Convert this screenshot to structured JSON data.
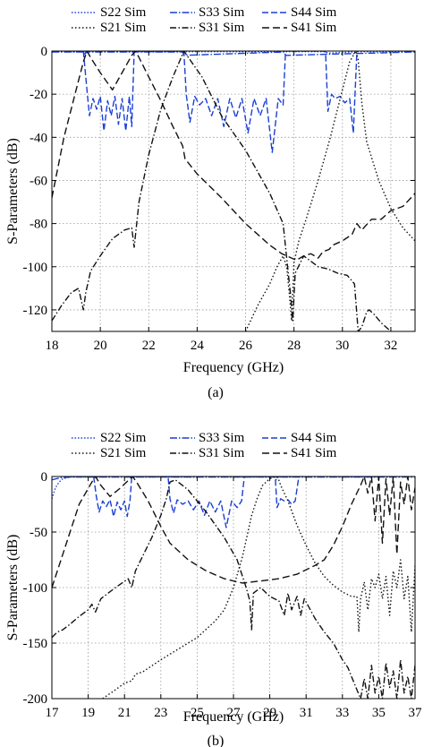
{
  "chart_data": [
    {
      "type": "line",
      "caption": "(a)",
      "xlabel": "Frequency (GHz)",
      "ylabel": "S-Parameters (dB)",
      "xlim": [
        18,
        33
      ],
      "ylim": [
        -130,
        0
      ],
      "xticks": [
        18,
        20,
        22,
        24,
        26,
        28,
        30,
        32
      ],
      "yticks": [
        0,
        -20,
        -40,
        -60,
        -80,
        -100,
        -120
      ],
      "grid": true,
      "legend_position": "top",
      "series": [
        {
          "name": "S22 Sim",
          "color": "#1a3fd6",
          "dash": "1.5 2",
          "x": [
            18,
            19.3,
            19.4,
            19.5,
            20.5,
            21.4,
            21.5,
            23.4,
            23.5,
            27.6,
            27.7,
            29.3,
            29.4,
            30.6,
            30.7,
            33
          ],
          "y": [
            -0.3,
            -0.3,
            -1,
            -0.3,
            -0.3,
            -0.3,
            -0.3,
            -0.3,
            -0.3,
            -0.3,
            -0.3,
            -0.3,
            -1,
            -0.3,
            -0.3,
            -0.3
          ]
        },
        {
          "name": "S33 Sim",
          "color": "#1a3fd6",
          "dash": "8 2 1.5 2",
          "x": [
            18,
            19.3,
            19.35,
            19.4,
            20,
            21.4,
            23.4,
            23.45,
            27.6,
            27.65,
            33
          ],
          "y": [
            -0.4,
            -0.4,
            -2,
            -0.4,
            -0.4,
            -0.4,
            -0.4,
            -2,
            -0.4,
            -2,
            -0.4
          ]
        },
        {
          "name": "S44 Sim",
          "color": "#1a3fd6",
          "dash": "7 3",
          "x": [
            19.3,
            19.45,
            19.55,
            19.7,
            19.85,
            20.0,
            20.15,
            20.3,
            20.45,
            20.6,
            20.75,
            20.9,
            21.05,
            21.2,
            21.3,
            21.4,
            23.45,
            23.55,
            23.7,
            23.9,
            24.1,
            24.35,
            24.6,
            24.85,
            25.1,
            25.35,
            25.6,
            25.85,
            26.1,
            26.35,
            26.6,
            26.85,
            27.1,
            27.35,
            27.55,
            27.65,
            29.3,
            29.4,
            29.55,
            29.7,
            29.9,
            30.1,
            30.3,
            30.45,
            30.6
          ],
          "y": [
            0,
            -18,
            -30,
            -22,
            -27,
            -21,
            -37,
            -23,
            -30,
            -21,
            -34,
            -22,
            -37,
            -21,
            -35,
            0,
            0,
            -20,
            -33,
            -21,
            -25,
            -22,
            -30,
            -22,
            -35,
            -22,
            -31,
            -22,
            -38,
            -22,
            -30,
            -22,
            -47,
            -22,
            -25,
            0,
            0,
            -28,
            -20,
            -22,
            -21,
            -24,
            -22,
            -38,
            0
          ]
        },
        {
          "name": "S21 Sim",
          "color": "#111111",
          "dash": "1.5 2.5",
          "x": [
            26,
            26.5,
            27,
            27.3,
            27.55,
            27.7,
            27.8,
            27.9,
            28.0,
            28.2,
            28.5,
            29,
            29.5,
            30,
            30.3,
            30.55,
            30.65,
            30.8,
            31,
            31.5,
            32,
            32.5,
            33
          ],
          "y": [
            -130,
            -118,
            -108,
            -100,
            -95,
            -100,
            -112,
            -125,
            -98,
            -88,
            -78,
            -60,
            -40,
            -18,
            -5,
            0,
            -4,
            -24,
            -42,
            -60,
            -73,
            -82,
            -88
          ]
        },
        {
          "name": "S31 Sim",
          "color": "#111111",
          "dash": "7 2.5 1.5 2.5",
          "x": [
            18,
            18.4,
            18.8,
            19.1,
            19.3,
            19.4,
            19.6,
            20,
            20.5,
            21,
            21.3,
            21.4,
            21.6,
            22,
            22.5,
            23,
            23.3,
            23.45,
            23.7,
            24.2,
            25,
            26,
            27,
            27.55,
            27.7,
            27.85,
            27.95,
            28.05,
            28.4,
            29,
            29.4,
            29.8,
            30.2,
            30.5,
            30.65,
            30.8,
            31.0,
            31.1,
            31.3,
            31.6,
            32.0
          ],
          "y": [
            -125,
            -118,
            -112,
            -110,
            -120,
            -112,
            -102,
            -95,
            -87,
            -83,
            -82,
            -91,
            -70,
            -48,
            -27,
            -12,
            -4,
            0,
            -4,
            -12,
            -30,
            -46,
            -66,
            -80,
            -96,
            -112,
            -125,
            -103,
            -95,
            -100,
            -101,
            -103,
            -104,
            -108,
            -130,
            -128,
            -121,
            -120,
            -122,
            -126,
            -130
          ]
        },
        {
          "name": "S41 Sim",
          "color": "#111111",
          "dash": "8 4",
          "x": [
            18,
            18.5,
            19,
            19.3,
            19.45,
            19.6,
            20,
            20.5,
            21,
            21.3,
            21.45,
            21.6,
            22,
            22.5,
            23,
            23.4,
            23.5,
            24,
            25,
            26,
            27,
            27.5,
            27.7,
            27.9,
            28.1,
            28.4,
            28.7,
            29,
            29.2,
            29.45,
            29.6,
            29.8,
            30,
            30.4,
            30.6,
            30.8,
            31.2,
            31.6,
            32,
            32.5,
            33
          ],
          "y": [
            -68,
            -40,
            -18,
            -5,
            0,
            -3,
            -10,
            -18,
            -8,
            -2,
            0,
            -3,
            -12,
            -23,
            -35,
            -44,
            -50,
            -57,
            -68,
            -80,
            -90,
            -94,
            -95,
            -96,
            -97,
            -95,
            -94,
            -96,
            -93,
            -92,
            -90,
            -89,
            -88,
            -85,
            -80,
            -83,
            -78,
            -78,
            -74,
            -72,
            -66
          ]
        }
      ]
    },
    {
      "type": "line",
      "caption": "(b)",
      "xlabel": "Frequency (GHz)",
      "ylabel": "S-Parameters (dB)",
      "xlim": [
        17,
        37
      ],
      "ylim": [
        -200,
        0
      ],
      "xticks": [
        17,
        19,
        21,
        23,
        25,
        27,
        29,
        31,
        33,
        35,
        37
      ],
      "yticks": [
        0,
        -50,
        -100,
        -150,
        -200
      ],
      "grid": true,
      "legend_position": "top",
      "series": [
        {
          "name": "S22 Sim",
          "color": "#1a3fd6",
          "dash": "1.5 2",
          "x": [
            17,
            17.2,
            17.4,
            17.6,
            18,
            19.3,
            21.4,
            23.4,
            27.6,
            29.3,
            29.35,
            29.4,
            30.6,
            37
          ],
          "y": [
            -20,
            -10,
            -5,
            -2,
            -0.5,
            -0.5,
            -0.5,
            -0.5,
            -0.5,
            -0.5,
            -3,
            -0.5,
            -0.5,
            -0.5
          ]
        },
        {
          "name": "S33 Sim",
          "color": "#1a3fd6",
          "dash": "8 2 1.5 2",
          "x": [
            17,
            17.5,
            18,
            19.3,
            21.4,
            23.4,
            27.6,
            37
          ],
          "y": [
            -3,
            -1,
            -0.5,
            -0.5,
            -0.5,
            -0.5,
            -0.5,
            -0.5
          ]
        },
        {
          "name": "S44 Sim",
          "color": "#1a3fd6",
          "dash": "7 3",
          "x": [
            19.3,
            19.45,
            19.6,
            19.8,
            20.0,
            20.2,
            20.4,
            20.6,
            20.8,
            21.0,
            21.15,
            21.3,
            21.4,
            23.4,
            23.5,
            23.7,
            23.9,
            24.2,
            24.5,
            24.8,
            25.1,
            25.4,
            25.7,
            26.0,
            26.3,
            26.6,
            26.9,
            27.2,
            27.45,
            27.6,
            29.3,
            29.4,
            29.6,
            29.8,
            30.0,
            30.2,
            30.4,
            30.6
          ],
          "y": [
            0,
            -18,
            -32,
            -22,
            -27,
            -21,
            -36,
            -23,
            -30,
            -22,
            -36,
            -22,
            0,
            0,
            -20,
            -33,
            -21,
            -25,
            -22,
            -30,
            -22,
            -35,
            -22,
            -32,
            -22,
            -46,
            -22,
            -28,
            -22,
            0,
            0,
            -28,
            -20,
            -22,
            -21,
            -25,
            -22,
            0
          ]
        },
        {
          "name": "S21 Sim",
          "color": "#111111",
          "dash": "1.5 2.5",
          "x": [
            19.8,
            20.5,
            21,
            21.4,
            21.6,
            22,
            23,
            24,
            25,
            26,
            26.5,
            27,
            27.5,
            27.8,
            28.0,
            28.3,
            28.6,
            29,
            29.3,
            29.45,
            29.6,
            30,
            30.5,
            31,
            31.5,
            32,
            32.5,
            33,
            33.5,
            33.8,
            33.9,
            34.0,
            34.2,
            34.4,
            34.6,
            34.8,
            35.0,
            35.2,
            35.4,
            35.6,
            35.8,
            36.0,
            36.2,
            36.4,
            36.6,
            36.8,
            37
          ],
          "y": [
            -200,
            -192,
            -186,
            -184,
            -178,
            -176,
            -165,
            -155,
            -145,
            -130,
            -120,
            -100,
            -72,
            -50,
            -35,
            -20,
            -8,
            -2,
            0,
            -1,
            -8,
            -22,
            -44,
            -62,
            -78,
            -90,
            -98,
            -104,
            -108,
            -108,
            -140,
            -110,
            -95,
            -120,
            -92,
            -100,
            -88,
            -110,
            -90,
            -125,
            -85,
            -100,
            -75,
            -110,
            -90,
            -140,
            -80
          ]
        },
        {
          "name": "S31 Sim",
          "color": "#111111",
          "dash": "7 2.5 1.5 2.5",
          "x": [
            17,
            17.3,
            17.6,
            18,
            18.5,
            19,
            19.2,
            19.4,
            19.7,
            20.5,
            21.2,
            21.4,
            21.6,
            22.5,
            23,
            23.3,
            23.5,
            23.8,
            24.5,
            25.5,
            26.5,
            27.2,
            27.5,
            27.7,
            27.9,
            28.0,
            28.1,
            28.5,
            29,
            29.5,
            29.8,
            30.0,
            30.2,
            30.5,
            30.7,
            30.9,
            31.5,
            32,
            32.5,
            33,
            33.3,
            33.5,
            33.8,
            34.0,
            34.2,
            34.4,
            34.6,
            34.8,
            35.0,
            35.2,
            35.4,
            35.6,
            35.8,
            36.0,
            36.2,
            36.4,
            36.6,
            36.8,
            37
          ],
          "y": [
            -145,
            -140,
            -138,
            -133,
            -126,
            -120,
            -115,
            -122,
            -110,
            -100,
            -92,
            -100,
            -85,
            -55,
            -35,
            -20,
            -5,
            -3,
            -12,
            -32,
            -55,
            -75,
            -90,
            -100,
            -112,
            -138,
            -105,
            -100,
            -108,
            -112,
            -125,
            -105,
            -120,
            -108,
            -125,
            -110,
            -128,
            -140,
            -150,
            -165,
            -172,
            -180,
            -192,
            -200,
            -182,
            -200,
            -170,
            -195,
            -180,
            -200,
            -168,
            -190,
            -175,
            -200,
            -165,
            -195,
            -180,
            -200,
            -170
          ]
        },
        {
          "name": "S41 Sim",
          "color": "#111111",
          "dash": "8 4",
          "x": [
            17,
            17.5,
            18,
            18.5,
            19.2,
            19.4,
            19.7,
            20.2,
            20.8,
            21.3,
            21.45,
            21.7,
            22.3,
            23,
            23.5,
            24.5,
            25.5,
            26.5,
            27.5,
            28.5,
            29.5,
            30.5,
            31.5,
            32,
            32.5,
            33,
            33.5,
            34,
            34.2,
            34.4,
            34.6,
            34.8,
            35.0,
            35.2,
            35.4,
            35.6,
            35.8,
            36.0,
            36.2,
            36.4,
            36.6,
            36.8,
            37
          ],
          "y": [
            -100,
            -75,
            -50,
            -25,
            -5,
            0,
            -8,
            -18,
            -10,
            -2,
            0,
            -6,
            -22,
            -45,
            -60,
            -75,
            -85,
            -92,
            -96,
            -94,
            -92,
            -88,
            -80,
            -75,
            -62,
            -45,
            -25,
            -8,
            0,
            -15,
            0,
            -40,
            0,
            -60,
            -2,
            -35,
            0,
            -70,
            -5,
            -25,
            0,
            -30,
            -10
          ]
        }
      ]
    }
  ]
}
